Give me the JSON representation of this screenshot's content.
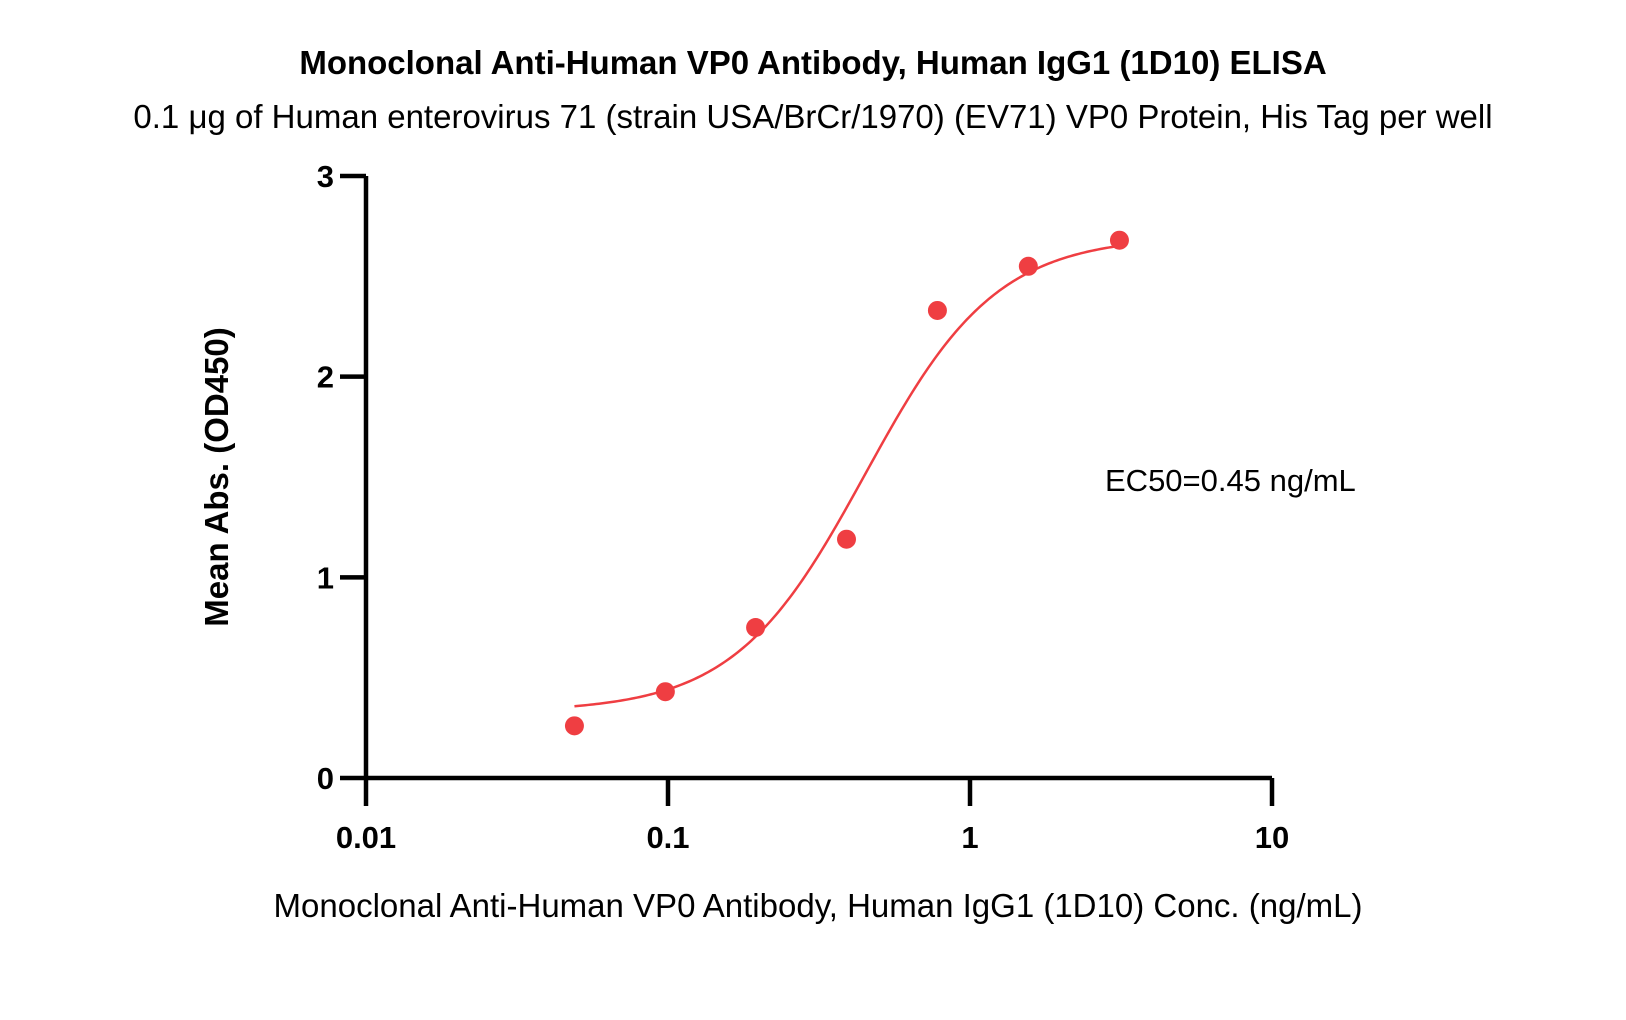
{
  "chart_data": {
    "type": "scatter",
    "title": "Monoclonal Anti-Human VP0 Antibody, Human IgG1 (1D10) ELISA",
    "subtitle": "0.1 μg of Human enterovirus 71 (strain USA/BrCr/1970) (EV71) VP0 Protein, His Tag per well",
    "xlabel": "Monoclonal Anti-Human VP0 Antibody, Human IgG1 (1D10) Conc. (ng/mL)",
    "ylabel": "Mean Abs. (OD450)",
    "x_scale": "log",
    "xlim": [
      0.01,
      10
    ],
    "ylim": [
      0,
      3
    ],
    "x_ticks": [
      0.01,
      0.1,
      1,
      10
    ],
    "x_tick_labels": [
      "0.01",
      "0.1",
      "1",
      "10"
    ],
    "y_ticks": [
      0,
      1,
      2,
      3
    ],
    "y_tick_labels": [
      "0",
      "1",
      "2",
      "3"
    ],
    "grid": false,
    "color": "#ef3e42",
    "series": [
      {
        "x": [
          0.049,
          0.098,
          0.195,
          0.39,
          0.78,
          1.56,
          3.125
        ],
        "y": [
          0.26,
          0.43,
          0.75,
          1.19,
          2.33,
          2.55,
          2.68
        ]
      }
    ],
    "fit_curve": {
      "model": "4PL",
      "bottom": 0.33,
      "top": 2.7,
      "ec50": 0.45,
      "hill": 2.0,
      "x_range": [
        0.049,
        3.125
      ]
    },
    "annotation": "EC50=0.45 ng/mL"
  }
}
